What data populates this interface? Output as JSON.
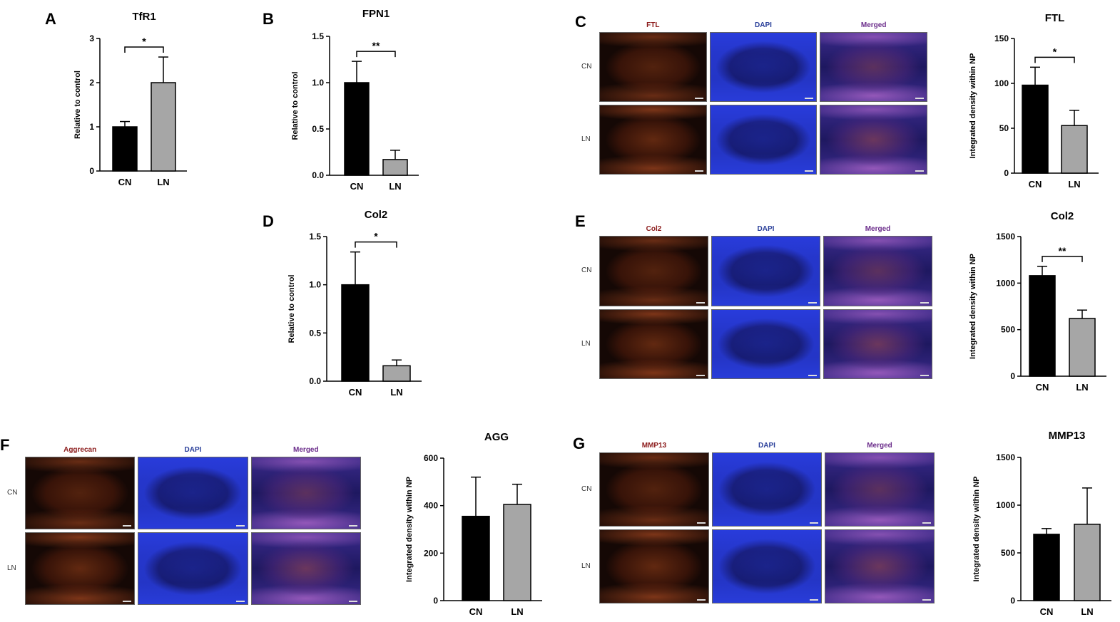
{
  "panels": [
    {
      "id": "A",
      "letter": "A",
      "kind": "chart",
      "chart_data": {
        "type": "bar",
        "title": "TfR1",
        "ylabel": "Relative to control",
        "xlabel": "",
        "categories": [
          "CN",
          "LN"
        ],
        "values": [
          1.0,
          2.0
        ],
        "errors": [
          0.12,
          0.58
        ],
        "ylim": [
          0,
          3
        ],
        "yticks": [
          "0",
          "1",
          "2",
          "3"
        ],
        "significance": "*",
        "colors": [
          "#000000",
          "#a6a6a6"
        ]
      }
    },
    {
      "id": "B",
      "letter": "B",
      "kind": "chart",
      "chart_data": {
        "type": "bar",
        "title": "FPN1",
        "ylabel": "Relative to control",
        "xlabel": "",
        "categories": [
          "CN",
          "LN"
        ],
        "values": [
          1.0,
          0.17
        ],
        "errors": [
          0.23,
          0.1
        ],
        "ylim": [
          0,
          1.5
        ],
        "yticks": [
          "0.0",
          "0.5",
          "1.0",
          "1.5"
        ],
        "significance": "**",
        "colors": [
          "#000000",
          "#a6a6a6"
        ]
      }
    },
    {
      "id": "C",
      "letter": "C",
      "kind": "micro+chart",
      "micrograph": {
        "columns": [
          "FTL",
          "DAPI",
          "Merged"
        ],
        "rows": [
          "CN",
          "LN"
        ]
      },
      "chart_data": {
        "type": "bar",
        "title": "FTL",
        "ylabel": "Integrated density within NP",
        "xlabel": "",
        "categories": [
          "CN",
          "LN"
        ],
        "values": [
          98,
          53
        ],
        "errors": [
          20,
          17
        ],
        "ylim": [
          0,
          150
        ],
        "yticks": [
          "0",
          "50",
          "100",
          "150"
        ],
        "significance": "*",
        "colors": [
          "#000000",
          "#a6a6a6"
        ]
      }
    },
    {
      "id": "D",
      "letter": "D",
      "kind": "chart",
      "chart_data": {
        "type": "bar",
        "title": "Col2",
        "ylabel": "Relative to control",
        "xlabel": "",
        "categories": [
          "CN",
          "LN"
        ],
        "values": [
          1.0,
          0.16
        ],
        "errors": [
          0.34,
          0.06
        ],
        "ylim": [
          0,
          1.5
        ],
        "yticks": [
          "0.0",
          "0.5",
          "1.0",
          "1.5"
        ],
        "significance": "*",
        "colors": [
          "#000000",
          "#a6a6a6"
        ]
      }
    },
    {
      "id": "E",
      "letter": "E",
      "kind": "micro+chart",
      "micrograph": {
        "columns": [
          "Col2",
          "DAPI",
          "Merged"
        ],
        "rows": [
          "CN",
          "LN"
        ]
      },
      "chart_data": {
        "type": "bar",
        "title": "Col2",
        "ylabel": "Integrated density within NP",
        "xlabel": "",
        "categories": [
          "CN",
          "LN"
        ],
        "values": [
          1080,
          620
        ],
        "errors": [
          100,
          90
        ],
        "ylim": [
          0,
          1500
        ],
        "yticks": [
          "0",
          "500",
          "1000",
          "1500"
        ],
        "significance": "**",
        "colors": [
          "#000000",
          "#a6a6a6"
        ]
      }
    },
    {
      "id": "F",
      "letter": "F",
      "kind": "micro+chart",
      "micrograph": {
        "columns": [
          "Aggrecan",
          "DAPI",
          "Merged"
        ],
        "rows": [
          "CN",
          "LN"
        ]
      },
      "chart_data": {
        "type": "bar",
        "title": "AGG",
        "ylabel": "Integrated density within NP",
        "xlabel": "",
        "categories": [
          "CN",
          "LN"
        ],
        "values": [
          355,
          405
        ],
        "errors": [
          165,
          85
        ],
        "ylim": [
          0,
          600
        ],
        "yticks": [
          "0",
          "200",
          "400",
          "600"
        ],
        "significance": "",
        "colors": [
          "#000000",
          "#a6a6a6"
        ]
      }
    },
    {
      "id": "G",
      "letter": "G",
      "kind": "micro+chart",
      "micrograph": {
        "columns": [
          "MMP13",
          "DAPI",
          "Merged"
        ],
        "rows": [
          "CN",
          "LN"
        ]
      },
      "chart_data": {
        "type": "bar",
        "title": "MMP13",
        "ylabel": "Integrated density within NP",
        "xlabel": "",
        "categories": [
          "CN",
          "LN"
        ],
        "values": [
          695,
          800
        ],
        "errors": [
          60,
          380
        ],
        "ylim": [
          0,
          1500
        ],
        "yticks": [
          "0",
          "500",
          "1000",
          "1500"
        ],
        "significance": "",
        "colors": [
          "#000000",
          "#a6a6a6"
        ]
      }
    }
  ],
  "micro_colors": {
    "marker": "#8b1a1a",
    "dapi": "#2a3f9a",
    "merged": "#6b2d8b",
    "rowlabel": "#333333"
  }
}
